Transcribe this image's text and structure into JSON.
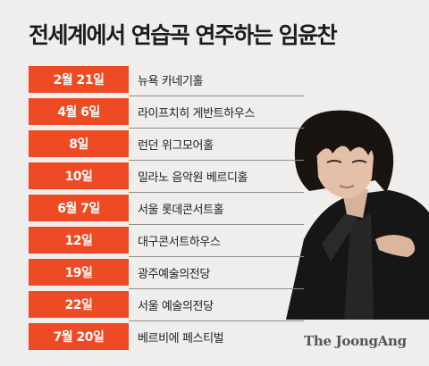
{
  "title": "전세계에서 연습곡 연주하는 임윤찬",
  "schedule": [
    {
      "date": "2월 21일",
      "venue": "뉴욕 카네기홀"
    },
    {
      "date": "4월 6일",
      "venue": "라이프치히 게반트하우스"
    },
    {
      "date": "8일",
      "venue": "런던 위그모어홀"
    },
    {
      "date": "10일",
      "venue": "밀라노 음악원 베르디홀"
    },
    {
      "date": "6월 7일",
      "venue": "서울 롯데콘서트홀"
    },
    {
      "date": "12일",
      "venue": "대구콘서트하우스"
    },
    {
      "date": "19일",
      "venue": "광주예술의전당"
    },
    {
      "date": "22일",
      "venue": "서울 예술의전당"
    },
    {
      "date": "7월 20일",
      "venue": "베르비에 페스티벌"
    }
  ],
  "credit": "The JoongAng",
  "colors": {
    "accent": "#ee4a23",
    "background": "#efeeec"
  }
}
